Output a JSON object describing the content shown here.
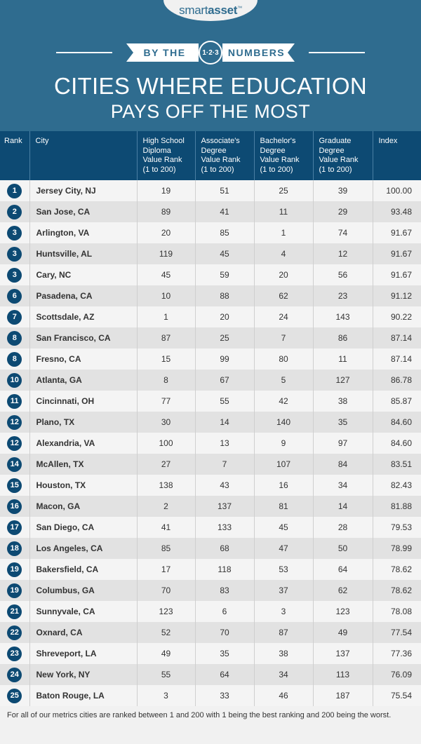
{
  "header": {
    "logo_smart": "smart",
    "logo_asset": "asset",
    "logo_tm": "™",
    "banner_left": "BY THE",
    "badge": "1·2·3",
    "banner_right": "NUMBERS",
    "title_line1": "CITIES WHERE EDUCATION",
    "title_line2": "PAYS OFF THE MOST"
  },
  "table": {
    "columns": {
      "rank": "Rank",
      "city": "City",
      "hs": [
        "High School",
        "Diploma",
        "Value Rank",
        "(1 to 200)"
      ],
      "as": [
        "Associate's",
        "Degree",
        "Value Rank",
        "(1 to 200)"
      ],
      "ba": [
        "Bachelor's",
        "Degree",
        "Value Rank",
        "(1 to 200)"
      ],
      "gr": [
        "Graduate",
        "Degree",
        "Value Rank",
        "(1 to 200)"
      ],
      "index": "Index"
    },
    "rows": [
      {
        "rank": "1",
        "city": "Jersey City, NJ",
        "hs": "19",
        "as": "51",
        "ba": "25",
        "gr": "39",
        "index": "100.00"
      },
      {
        "rank": "2",
        "city": "San Jose, CA",
        "hs": "89",
        "as": "41",
        "ba": "11",
        "gr": "29",
        "index": "93.48"
      },
      {
        "rank": "3",
        "city": "Arlington, VA",
        "hs": "20",
        "as": "85",
        "ba": "1",
        "gr": "74",
        "index": "91.67"
      },
      {
        "rank": "3",
        "city": "Huntsville, AL",
        "hs": "119",
        "as": "45",
        "ba": "4",
        "gr": "12",
        "index": "91.67"
      },
      {
        "rank": "3",
        "city": "Cary, NC",
        "hs": "45",
        "as": "59",
        "ba": "20",
        "gr": "56",
        "index": "91.67"
      },
      {
        "rank": "6",
        "city": "Pasadena, CA",
        "hs": "10",
        "as": "88",
        "ba": "62",
        "gr": "23",
        "index": "91.12"
      },
      {
        "rank": "7",
        "city": "Scottsdale, AZ",
        "hs": "1",
        "as": "20",
        "ba": "24",
        "gr": "143",
        "index": "90.22"
      },
      {
        "rank": "8",
        "city": "San Francisco, CA",
        "hs": "87",
        "as": "25",
        "ba": "7",
        "gr": "86",
        "index": "87.14"
      },
      {
        "rank": "8",
        "city": "Fresno, CA",
        "hs": "15",
        "as": "99",
        "ba": "80",
        "gr": "11",
        "index": "87.14"
      },
      {
        "rank": "10",
        "city": "Atlanta, GA",
        "hs": "8",
        "as": "67",
        "ba": "5",
        "gr": "127",
        "index": "86.78"
      },
      {
        "rank": "11",
        "city": "Cincinnati, OH",
        "hs": "77",
        "as": "55",
        "ba": "42",
        "gr": "38",
        "index": "85.87"
      },
      {
        "rank": "12",
        "city": "Plano, TX",
        "hs": "30",
        "as": "14",
        "ba": "140",
        "gr": "35",
        "index": "84.60"
      },
      {
        "rank": "12",
        "city": "Alexandria, VA",
        "hs": "100",
        "as": "13",
        "ba": "9",
        "gr": "97",
        "index": "84.60"
      },
      {
        "rank": "14",
        "city": "McAllen, TX",
        "hs": "27",
        "as": "7",
        "ba": "107",
        "gr": "84",
        "index": "83.51"
      },
      {
        "rank": "15",
        "city": "Houston, TX",
        "hs": "138",
        "as": "43",
        "ba": "16",
        "gr": "34",
        "index": "82.43"
      },
      {
        "rank": "16",
        "city": "Macon, GA",
        "hs": "2",
        "as": "137",
        "ba": "81",
        "gr": "14",
        "index": "81.88"
      },
      {
        "rank": "17",
        "city": "San Diego, CA",
        "hs": "41",
        "as": "133",
        "ba": "45",
        "gr": "28",
        "index": "79.53"
      },
      {
        "rank": "18",
        "city": "Los Angeles, CA",
        "hs": "85",
        "as": "68",
        "ba": "47",
        "gr": "50",
        "index": "78.99"
      },
      {
        "rank": "19",
        "city": "Bakersfield, CA",
        "hs": "17",
        "as": "118",
        "ba": "53",
        "gr": "64",
        "index": "78.62"
      },
      {
        "rank": "19",
        "city": "Columbus, GA",
        "hs": "70",
        "as": "83",
        "ba": "37",
        "gr": "62",
        "index": "78.62"
      },
      {
        "rank": "21",
        "city": "Sunnyvale, CA",
        "hs": "123",
        "as": "6",
        "ba": "3",
        "gr": "123",
        "index": "78.08"
      },
      {
        "rank": "22",
        "city": "Oxnard, CA",
        "hs": "52",
        "as": "70",
        "ba": "87",
        "gr": "49",
        "index": "77.54"
      },
      {
        "rank": "23",
        "city": "Shreveport, LA",
        "hs": "49",
        "as": "35",
        "ba": "38",
        "gr": "137",
        "index": "77.36"
      },
      {
        "rank": "24",
        "city": "New York, NY",
        "hs": "55",
        "as": "64",
        "ba": "34",
        "gr": "113",
        "index": "76.09"
      },
      {
        "rank": "25",
        "city": "Baton Rouge, LA",
        "hs": "3",
        "as": "33",
        "ba": "46",
        "gr": "187",
        "index": "75.54"
      }
    ]
  },
  "footnote": "For all of our metrics cities are ranked between 1 and 200 with 1 being the best ranking and 200 being the worst.",
  "colors": {
    "header_bg": "#2f6c8f",
    "table_header_bg": "#0d4a73",
    "rank_circle": "#0d4a73",
    "row_light": "#f4f4f4",
    "row_dark": "#e2e2e2"
  }
}
